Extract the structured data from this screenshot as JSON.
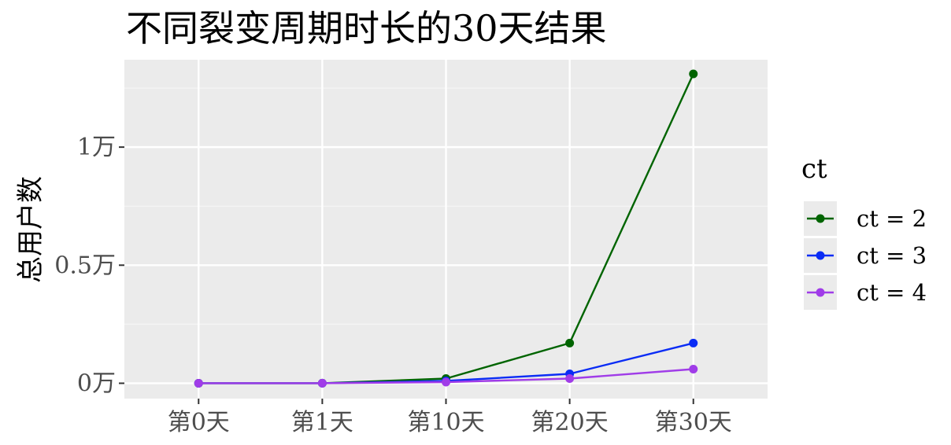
{
  "chart_data": {
    "type": "line",
    "title": "不同裂变周期时长的30天结果",
    "xlabel": "",
    "ylabel": "总用户数",
    "categories": [
      "第0天",
      "第1天",
      "第10天",
      "第20天",
      "第30天"
    ],
    "y_ticks": [
      {
        "value": 0,
        "label": "0万"
      },
      {
        "value": 5000,
        "label": "0.5万"
      },
      {
        "value": 10000,
        "label": "1万"
      }
    ],
    "ylim": [
      -650,
      13700
    ],
    "grid": true,
    "legend": {
      "title": "ct",
      "position": "right"
    },
    "series": [
      {
        "name": "ct = 2",
        "color": "#006400",
        "values": [
          1,
          2,
          200,
          1700,
          13100
        ]
      },
      {
        "name": "ct = 3",
        "color": "#0a2cf5",
        "values": [
          1,
          2,
          100,
          400,
          1700
        ]
      },
      {
        "name": "ct = 4",
        "color": "#a03ce8",
        "values": [
          1,
          2,
          50,
          200,
          600
        ]
      }
    ]
  }
}
